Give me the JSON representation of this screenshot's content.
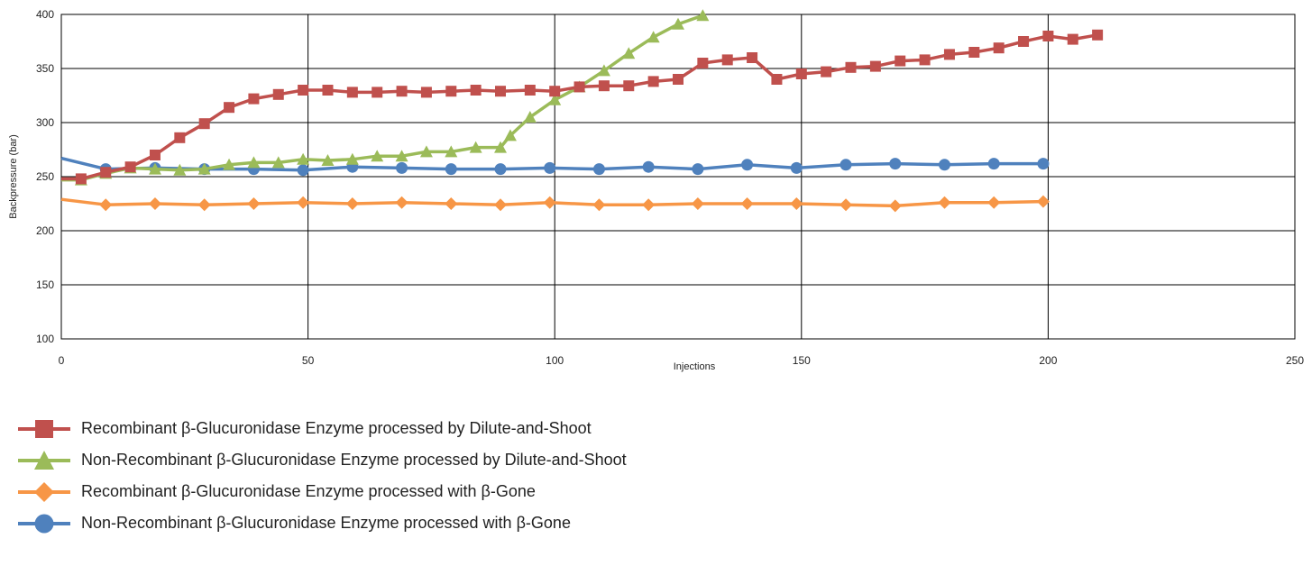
{
  "chart_data": {
    "type": "line",
    "xlabel": "Injections",
    "ylabel": "Backpressure (bar)",
    "xlim": [
      0,
      250
    ],
    "ylim": [
      100,
      400
    ],
    "x_ticks": [
      "0",
      "50",
      "100",
      "150",
      "200",
      "250"
    ],
    "y_ticks": [
      "100",
      "150",
      "200",
      "250",
      "300",
      "350",
      "400"
    ],
    "grid": true,
    "legend_position": "bottom",
    "series": [
      {
        "name": "Recombinant β-Glucuronidase Enzyme processed by Dilute-and-Shoot",
        "color": "#c0504d",
        "marker": "square",
        "x": [
          0,
          4,
          9,
          14,
          19,
          24,
          29,
          34,
          39,
          44,
          49,
          54,
          59,
          64,
          69,
          74,
          79,
          84,
          89,
          95,
          100,
          105,
          110,
          115,
          120,
          125,
          130,
          135,
          140,
          145,
          150,
          155,
          160,
          165,
          170,
          175,
          180,
          185,
          190,
          195,
          200,
          205,
          210
        ],
        "y": [
          248,
          248,
          254,
          259,
          270,
          286,
          299,
          314,
          322,
          326,
          330,
          330,
          328,
          328,
          329,
          328,
          329,
          330,
          329,
          330,
          329,
          333,
          334,
          334,
          338,
          340,
          355,
          358,
          360,
          340,
          345,
          347,
          351,
          352,
          357,
          358,
          363,
          365,
          369,
          375,
          380,
          377,
          381
        ]
      },
      {
        "name": "Non-Recombinant β-Glucuronidase Enzyme processed by Dilute-and-Shoot",
        "color": "#9bbb59",
        "marker": "triangle",
        "x": [
          0,
          4,
          9,
          14,
          19,
          24,
          29,
          34,
          39,
          44,
          49,
          54,
          59,
          64,
          69,
          74,
          79,
          84,
          89,
          91,
          95,
          100,
          105,
          110,
          115,
          120,
          125,
          130
        ],
        "y": [
          247,
          247,
          253,
          258,
          257,
          256,
          257,
          261,
          263,
          263,
          266,
          265,
          266,
          269,
          269,
          273,
          273,
          277,
          277,
          288,
          305,
          321,
          333,
          348,
          364,
          379,
          391,
          399
        ]
      },
      {
        "name": "Recombinant β-Glucuronidase Enzyme processed with β-Gone",
        "color": "#f79646",
        "marker": "diamond",
        "x": [
          0,
          9,
          19,
          29,
          39,
          49,
          59,
          69,
          79,
          89,
          99,
          109,
          119,
          129,
          139,
          149,
          159,
          169,
          179,
          189,
          199
        ],
        "y": [
          229,
          224,
          225,
          224,
          225,
          226,
          225,
          226,
          225,
          224,
          226,
          224,
          224,
          225,
          225,
          225,
          224,
          223,
          226,
          226,
          227
        ]
      },
      {
        "name": "Non-Recombinant β-Glucuronidase Enzyme processed with β-Gone",
        "color": "#4f81bd",
        "marker": "circle",
        "x": [
          0,
          9,
          19,
          29,
          39,
          49,
          59,
          69,
          79,
          89,
          99,
          109,
          119,
          129,
          139,
          149,
          159,
          169,
          179,
          189,
          199
        ],
        "y": [
          267,
          257,
          258,
          257,
          257,
          256,
          259,
          258,
          257,
          257,
          258,
          257,
          259,
          257,
          261,
          258,
          261,
          262,
          261,
          262,
          262
        ]
      }
    ]
  }
}
